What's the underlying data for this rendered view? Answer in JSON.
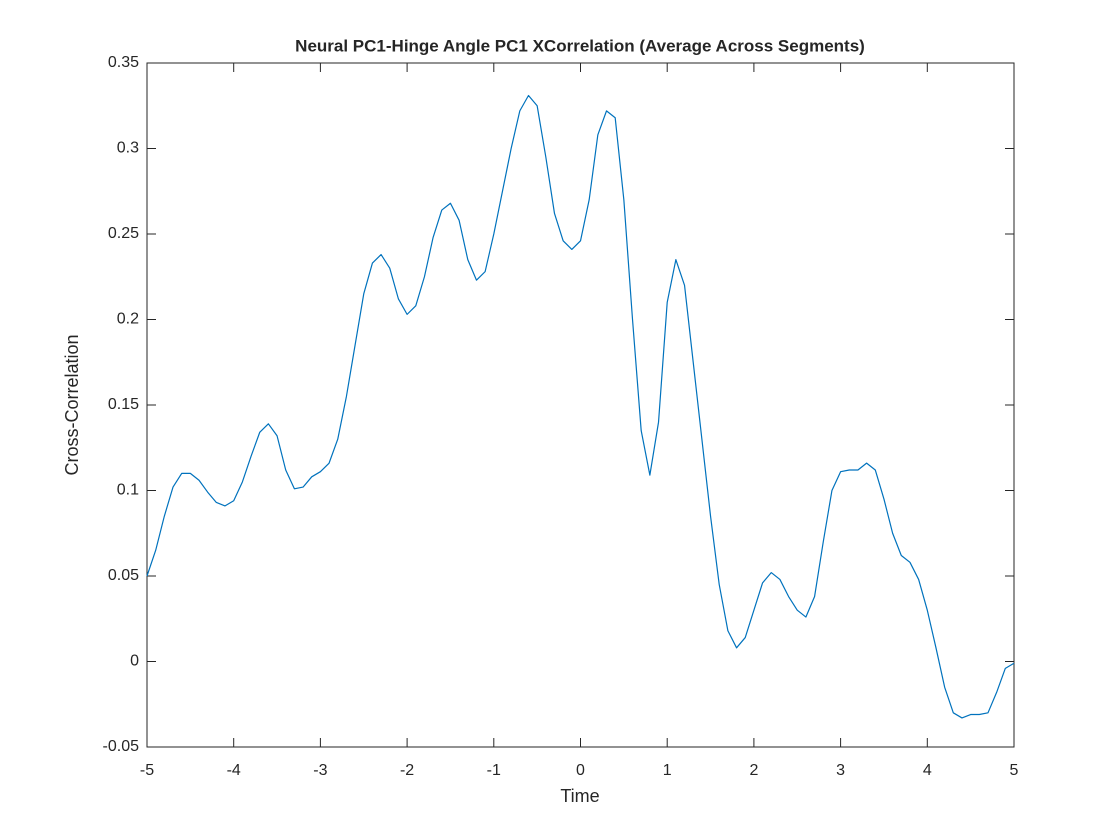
{
  "chart_data": {
    "type": "line",
    "title": "Neural PC1-Hinge Angle PC1 XCorrelation (Average Across Segments)",
    "xlabel": "Time",
    "ylabel": "Cross-Correlation",
    "x": [
      -5,
      -4.9,
      -4.8,
      -4.7,
      -4.6,
      -4.5,
      -4.4,
      -4.3,
      -4.2,
      -4.1,
      -4,
      -3.9,
      -3.8,
      -3.7,
      -3.6,
      -3.5,
      -3.4,
      -3.3,
      -3.2,
      -3.1,
      -3,
      -2.9,
      -2.8,
      -2.7,
      -2.6,
      -2.5,
      -2.4,
      -2.3,
      -2.2,
      -2.1,
      -2,
      -1.9,
      -1.8,
      -1.7,
      -1.6,
      -1.5,
      -1.4,
      -1.3,
      -1.2,
      -1.1,
      -1,
      -0.9,
      -0.8,
      -0.7,
      -0.6,
      -0.5,
      -0.4,
      -0.3,
      -0.2,
      -0.1,
      0,
      0.1,
      0.2,
      0.3,
      0.4,
      0.5,
      0.6,
      0.7,
      0.8,
      0.9,
      1,
      1.1,
      1.2,
      1.3,
      1.4,
      1.5,
      1.6,
      1.7,
      1.8,
      1.9,
      2,
      2.1,
      2.2,
      2.3,
      2.4,
      2.5,
      2.6,
      2.7,
      2.8,
      2.9,
      3,
      3.1,
      3.2,
      3.3,
      3.4,
      3.5,
      3.6,
      3.7,
      3.8,
      3.9,
      4,
      4.1,
      4.2,
      4.3,
      4.4,
      4.5,
      4.6,
      4.7,
      4.8,
      4.9,
      5
    ],
    "series": [
      {
        "name": "Cross-Correlation",
        "color": "#0072bd",
        "values": [
          0.05,
          0.065,
          0.085,
          0.102,
          0.11,
          0.11,
          0.106,
          0.099,
          0.093,
          0.091,
          0.094,
          0.105,
          0.12,
          0.134,
          0.139,
          0.132,
          0.112,
          0.101,
          0.102,
          0.108,
          0.111,
          0.116,
          0.13,
          0.155,
          0.185,
          0.215,
          0.233,
          0.238,
          0.23,
          0.212,
          0.203,
          0.208,
          0.225,
          0.248,
          0.264,
          0.268,
          0.258,
          0.235,
          0.223,
          0.228,
          0.25,
          0.275,
          0.3,
          0.322,
          0.331,
          0.325,
          0.295,
          0.262,
          0.246,
          0.241,
          0.246,
          0.27,
          0.308,
          0.322,
          0.318,
          0.27,
          0.2,
          0.135,
          0.109,
          0.14,
          0.21,
          0.235,
          0.22,
          0.175,
          0.13,
          0.085,
          0.045,
          0.018,
          0.008,
          0.014,
          0.03,
          0.046,
          0.052,
          0.048,
          0.038,
          0.03,
          0.026,
          0.038,
          0.07,
          0.1,
          0.111,
          0.112,
          0.112,
          0.116,
          0.112,
          0.095,
          0.075,
          0.062,
          0.058,
          0.048,
          0.03,
          0.008,
          -0.015,
          -0.03,
          -0.033,
          -0.031,
          -0.031,
          -0.03,
          -0.018,
          -0.004,
          -0.001
        ]
      }
    ],
    "xlim": [
      -5,
      5
    ],
    "xticks": [
      -5,
      -4,
      -3,
      -2,
      -1,
      0,
      1,
      2,
      3,
      4,
      5
    ],
    "ylim": [
      -0.05,
      0.35
    ],
    "yticks": [
      -0.05,
      0,
      0.05,
      0.1,
      0.15,
      0.2,
      0.25,
      0.3,
      0.35
    ]
  }
}
